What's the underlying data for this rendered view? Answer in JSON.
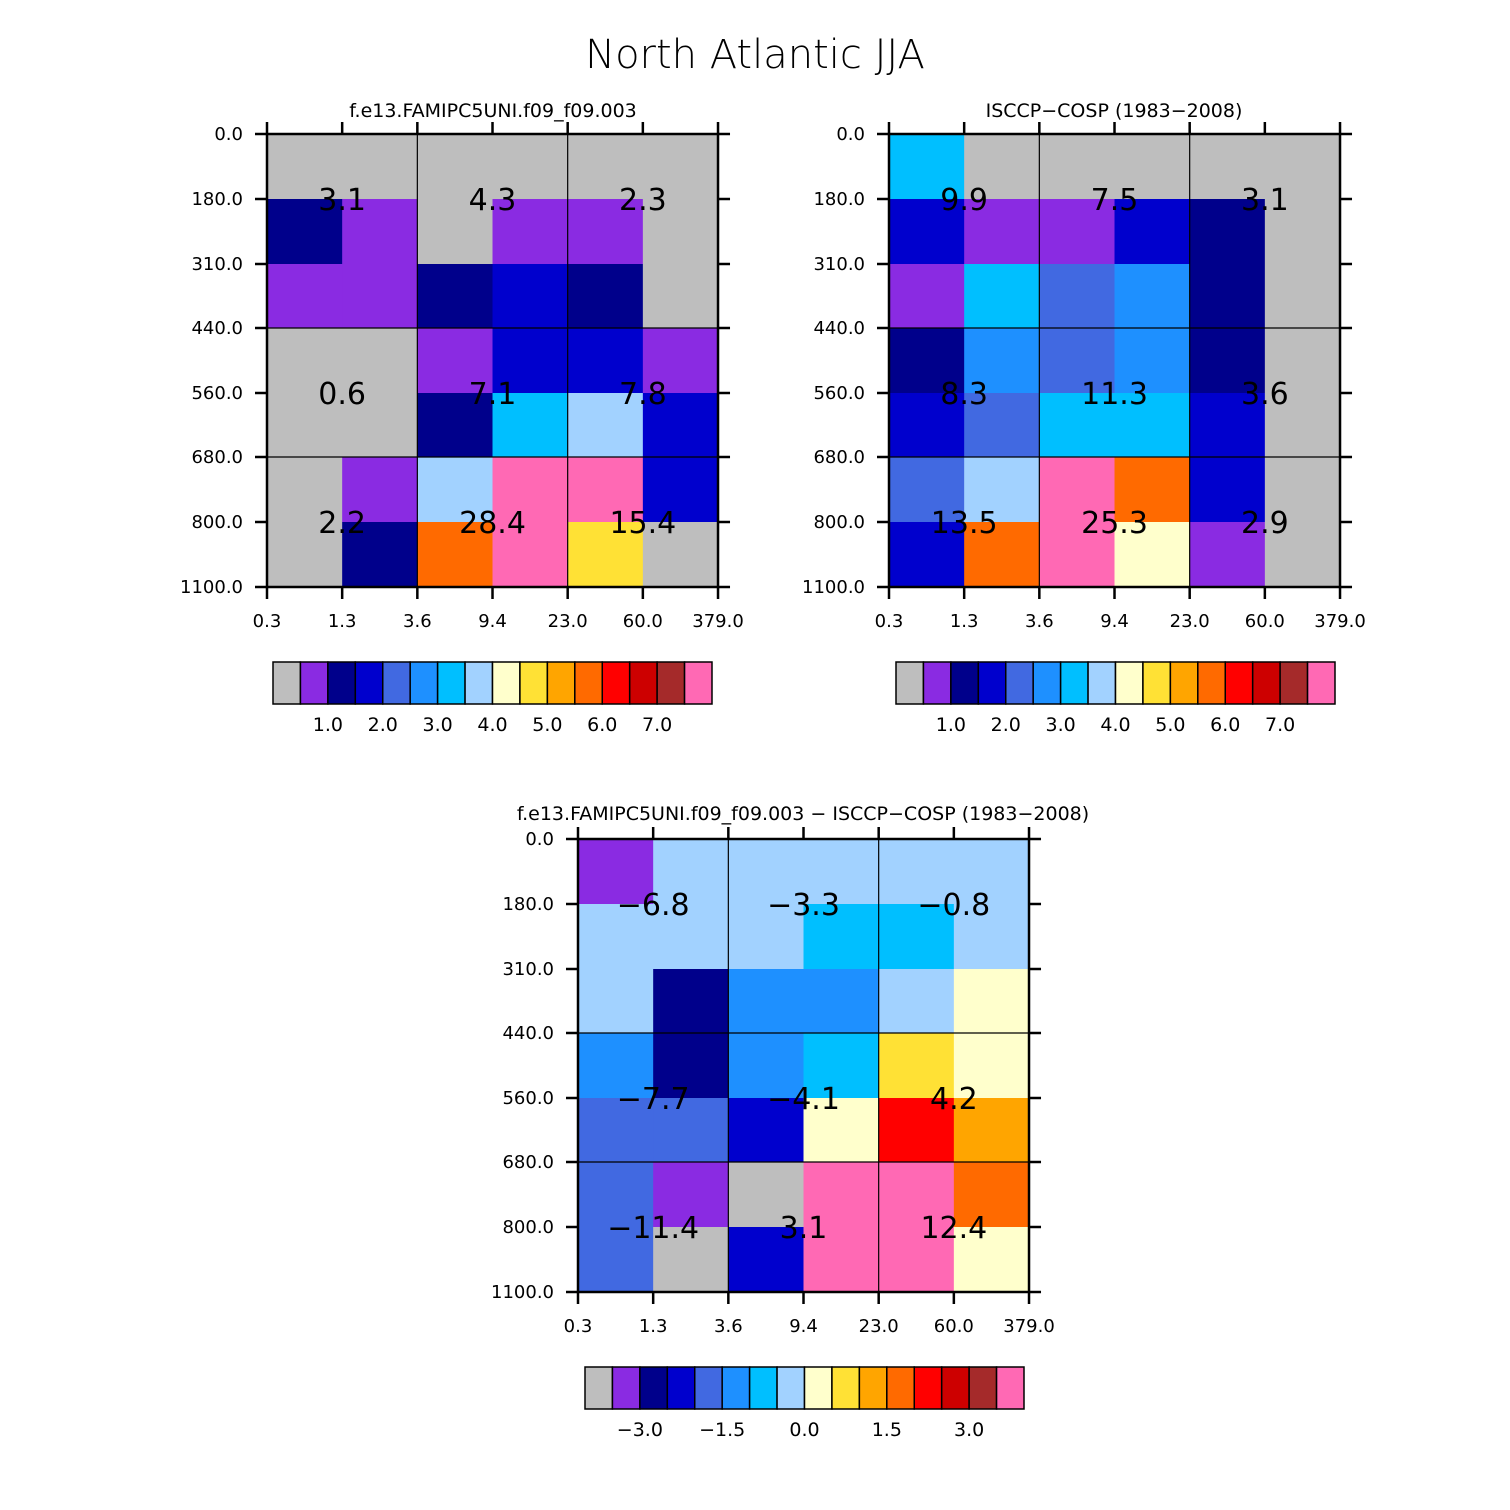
{
  "title": "North Atlantic JJA",
  "colors": {
    "palette": [
      "#bebebe",
      "#8a2be2",
      "#00008b",
      "#0000cd",
      "#4169e1",
      "#1e90ff",
      "#00bfff",
      "#a2d2ff",
      "#ffffcc",
      "#ffe135",
      "#ffa500",
      "#ff6a00",
      "#ff0000",
      "#cd0000",
      "#a52a2a",
      "#ff69b4"
    ],
    "grid": "#000000"
  },
  "chart_data": [
    {
      "type": "heatmap",
      "title": "f.e13.FAMIPC5UNI.f09_f09.003",
      "x_ticks": [
        "0.3",
        "1.3",
        "3.6",
        "9.4",
        "23.0",
        "60.0",
        "379.0"
      ],
      "y_ticks": [
        "0.0",
        "180.0",
        "310.0",
        "440.0",
        "560.0",
        "680.0",
        "800.0",
        "1100.0"
      ],
      "cell_colors": [
        [
          0,
          0,
          0,
          0,
          0,
          0
        ],
        [
          2,
          1,
          0,
          1,
          1,
          0
        ],
        [
          1,
          1,
          2,
          3,
          2,
          0
        ],
        [
          0,
          0,
          1,
          3,
          3,
          1
        ],
        [
          0,
          0,
          2,
          6,
          7,
          3
        ],
        [
          0,
          1,
          7,
          15,
          15,
          3
        ],
        [
          0,
          2,
          11,
          15,
          9,
          0
        ]
      ],
      "group_values": [
        [
          "3.1",
          "4.3",
          "2.3"
        ],
        [
          "0.6",
          "7.1",
          "7.8"
        ],
        [
          "2.2",
          "28.4",
          "15.4"
        ]
      ],
      "colorbar_labels": [
        "1.0",
        "2.0",
        "3.0",
        "4.0",
        "5.0",
        "6.0",
        "7.0"
      ]
    },
    {
      "type": "heatmap",
      "title": "ISCCP−COSP (1983−2008)",
      "x_ticks": [
        "0.3",
        "1.3",
        "3.6",
        "9.4",
        "23.0",
        "60.0",
        "379.0"
      ],
      "y_ticks": [
        "0.0",
        "180.0",
        "310.0",
        "440.0",
        "560.0",
        "680.0",
        "800.0",
        "1100.0"
      ],
      "cell_colors": [
        [
          6,
          0,
          0,
          0,
          0,
          0
        ],
        [
          3,
          1,
          1,
          3,
          2,
          0
        ],
        [
          1,
          6,
          4,
          5,
          2,
          0
        ],
        [
          2,
          5,
          4,
          5,
          2,
          0
        ],
        [
          3,
          4,
          6,
          6,
          3,
          0
        ],
        [
          4,
          7,
          15,
          11,
          3,
          0
        ],
        [
          3,
          11,
          15,
          8,
          1,
          0
        ]
      ],
      "group_values": [
        [
          "9.9",
          "7.5",
          "3.1"
        ],
        [
          "8.3",
          "11.3",
          "3.6"
        ],
        [
          "13.5",
          "25.3",
          "2.9"
        ]
      ],
      "colorbar_labels": [
        "1.0",
        "2.0",
        "3.0",
        "4.0",
        "5.0",
        "6.0",
        "7.0"
      ]
    },
    {
      "type": "heatmap",
      "title": "f.e13.FAMIPC5UNI.f09_f09.003 − ISCCP−COSP (1983−2008)",
      "x_ticks": [
        "0.3",
        "1.3",
        "3.6",
        "9.4",
        "23.0",
        "60.0",
        "379.0"
      ],
      "y_ticks": [
        "0.0",
        "180.0",
        "310.0",
        "440.0",
        "560.0",
        "680.0",
        "800.0",
        "1100.0"
      ],
      "cell_colors": [
        [
          1,
          7,
          7,
          7,
          7,
          7
        ],
        [
          7,
          7,
          7,
          6,
          6,
          7
        ],
        [
          7,
          2,
          5,
          5,
          7,
          8
        ],
        [
          5,
          2,
          5,
          6,
          9,
          8
        ],
        [
          4,
          4,
          3,
          8,
          12,
          10
        ],
        [
          4,
          1,
          0,
          15,
          15,
          11
        ],
        [
          4,
          0,
          3,
          15,
          15,
          8
        ]
      ],
      "group_values": [
        [
          "−6.8",
          "−3.3",
          "−0.8"
        ],
        [
          "−7.7",
          "−4.1",
          "4.2"
        ],
        [
          "−11.4",
          "3.1",
          "12.4"
        ]
      ],
      "colorbar_labels": [
        "−3.0",
        "−1.5",
        "0.0",
        "1.5",
        "3.0"
      ]
    }
  ]
}
